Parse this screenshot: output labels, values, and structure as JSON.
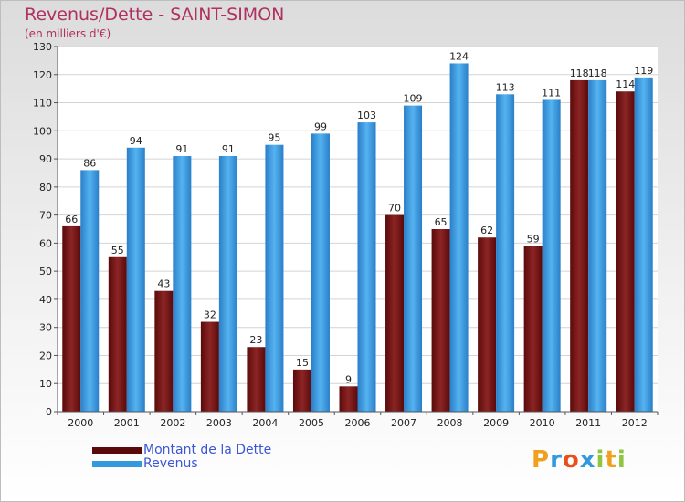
{
  "chart_data": {
    "type": "bar",
    "title": "Revenus/Dette - SAINT-SIMON",
    "subtitle": "(en milliers d'€)",
    "categories": [
      "2000",
      "2001",
      "2002",
      "2003",
      "2004",
      "2005",
      "2006",
      "2007",
      "2008",
      "2009",
      "2010",
      "2011",
      "2012"
    ],
    "series": [
      {
        "name": "Montant de la Dette",
        "color": "#7a1414",
        "values": [
          66,
          55,
          43,
          32,
          23,
          15,
          9,
          70,
          65,
          62,
          59,
          118,
          114
        ]
      },
      {
        "name": "Revenus",
        "color": "#3399dd",
        "values": [
          86,
          94,
          91,
          91,
          95,
          99,
          103,
          109,
          124,
          113,
          111,
          118,
          119
        ]
      }
    ],
    "ylim": [
      0,
      130
    ],
    "yticks": [
      0,
      10,
      20,
      30,
      40,
      50,
      60,
      70,
      80,
      90,
      100,
      110,
      120,
      130
    ],
    "grid": true,
    "legend_position": "bottom-left"
  },
  "legend": {
    "items": [
      {
        "label": "Montant de la Dette",
        "color": "#5a0a0a"
      },
      {
        "label": "Revenus",
        "color": "#3399dd"
      }
    ]
  },
  "logo": {
    "letters": [
      "P",
      "r",
      "o",
      "x",
      "i",
      "t",
      "i"
    ],
    "colors": [
      "#f0a020",
      "#3399dd",
      "#e94e1b",
      "#3399dd",
      "#8dc63f",
      "#f0a020",
      "#8dc63f"
    ]
  }
}
